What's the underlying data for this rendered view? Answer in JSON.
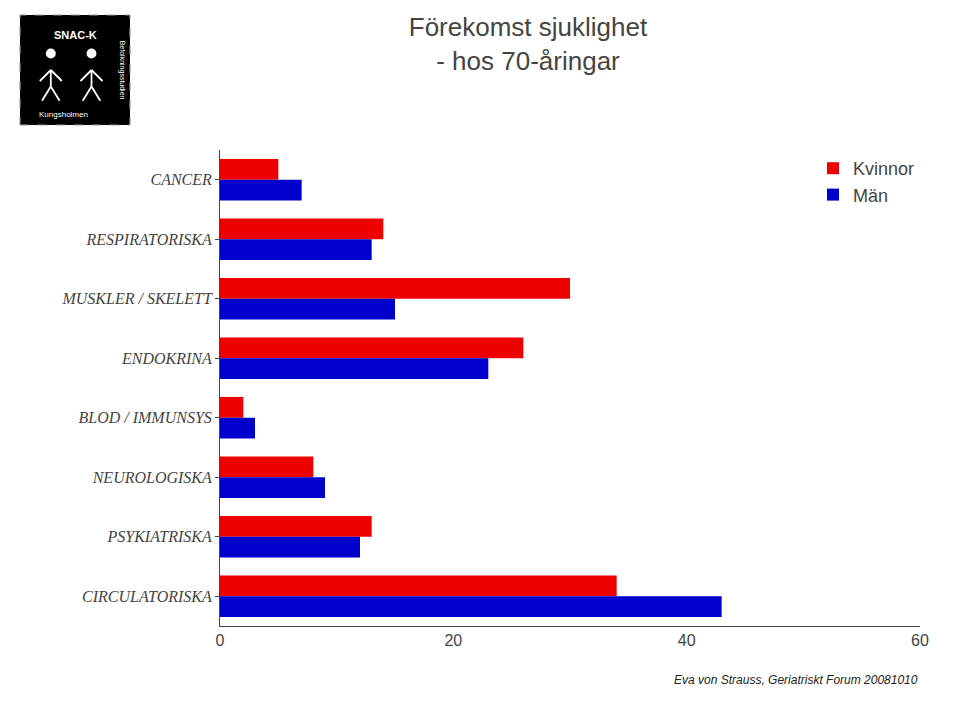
{
  "chart_data": {
    "type": "bar",
    "orientation": "horizontal",
    "title": "Förekomst sjuklighet\n- hos 70-åringar",
    "categories": [
      "CANCER",
      "RESPIRATORISKA",
      "MUSKLER / SKELETT",
      "ENDOKRINA",
      "BLOD / IMMUNSYS",
      "NEUROLOGISKA",
      "PSYKIATRISKA",
      "CIRCULATORISKA"
    ],
    "series": [
      {
        "name": "Kvinnor",
        "color": "#EE0000",
        "values": [
          5,
          14,
          30,
          26,
          2,
          8,
          13,
          34
        ]
      },
      {
        "name": "Män",
        "color": "#0000CC",
        "values": [
          7,
          13,
          15,
          23,
          3,
          9,
          12,
          43
        ]
      }
    ],
    "xlim": [
      0,
      60
    ],
    "xticks": [
      0,
      20,
      40,
      60
    ],
    "grid": false,
    "legend": "upper right",
    "annotations": [
      "Eva von Strauss, Geriatriskt Forum 20081010",
      "SNAC-K",
      "Kungsholmen",
      "Befolkningsstudien"
    ]
  }
}
